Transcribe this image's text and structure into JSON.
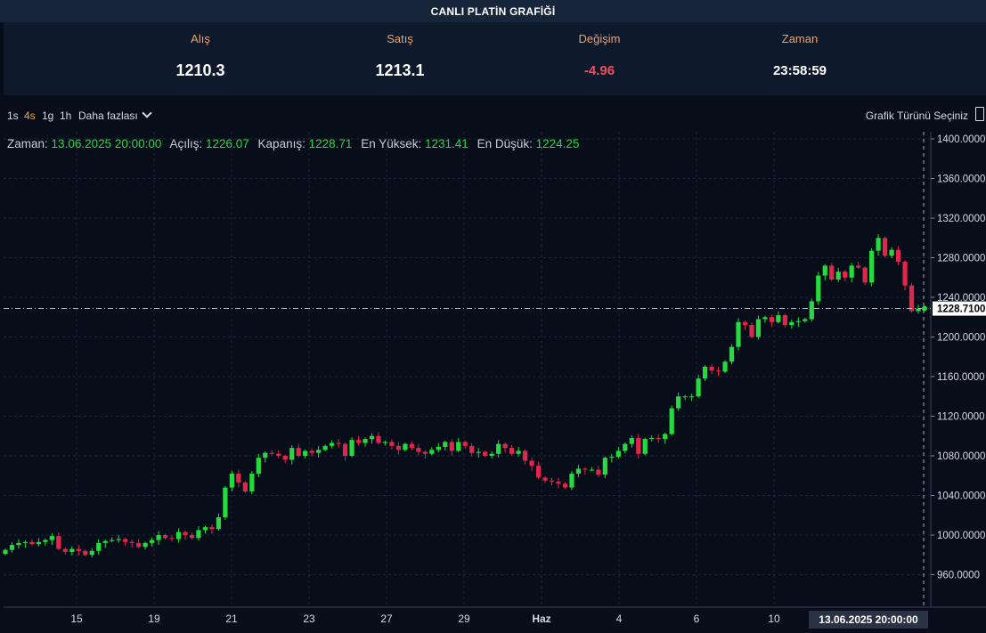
{
  "header": {
    "title": "CANLI PLATİN GRAFİĞİ"
  },
  "quotes": [
    {
      "label": "Alış",
      "value": "1210.3"
    },
    {
      "label": "Satış",
      "value": "1213.1"
    },
    {
      "label": "Değişim",
      "value": "-4.96"
    },
    {
      "label": "Zaman",
      "value": "23:58:59"
    }
  ],
  "toolbar": {
    "timeframes": [
      "1s",
      "4s",
      "1g",
      "1h"
    ],
    "active": "4s",
    "more_label": "Daha fazlası",
    "chart_type_label": "Grafik Türünü Seçiniz"
  },
  "legend": {
    "time_label": "Zaman:",
    "time_value": "13.06.2025 20:00:00",
    "open_label": "Açılış:",
    "open_value": "1226.07",
    "close_label": "Kapanış:",
    "close_value": "1228.71",
    "high_label": "En Yüksek:",
    "high_value": "1231.41",
    "low_label": "En Düşük:",
    "low_value": "1224.25"
  },
  "colors": {
    "up": "#26d93f",
    "down": "#e0264a",
    "grid": "#1c2636",
    "axis_text": "#d6dbe2"
  },
  "chart_data": {
    "type": "candlestick",
    "ylim": [
      930,
      1410
    ],
    "y_ticks": [
      "1400.0000",
      "1360.0000",
      "1320.0000",
      "1280.0000",
      "1240.0000",
      "1200.0000",
      "1160.0000",
      "1120.0000",
      "1080.0000",
      "1040.0000",
      "1000.0000",
      "960.0000"
    ],
    "x_ticks": [
      "15",
      "19",
      "21",
      "23",
      "27",
      "29",
      "Haz",
      "4",
      "6",
      "10"
    ],
    "last_price": "1228.7100",
    "crosshair_x_label": "13.06.2025   20:00:00",
    "closes": [
      985,
      990,
      992,
      993,
      991,
      993,
      995,
      999,
      986,
      983,
      986,
      984,
      980,
      984,
      992,
      994,
      995,
      996,
      993,
      992,
      988,
      992,
      995,
      1000,
      997,
      996,
      1003,
      1000,
      997,
      1005,
      1008,
      1006,
      1018,
      1048,
      1062,
      1053,
      1044,
      1062,
      1078,
      1083,
      1082,
      1080,
      1076,
      1088,
      1080,
      1085,
      1083,
      1086,
      1090,
      1093,
      1092,
      1080,
      1096,
      1093,
      1097,
      1100,
      1093,
      1094,
      1090,
      1086,
      1092,
      1088,
      1084,
      1082,
      1086,
      1089,
      1094,
      1085,
      1094,
      1090,
      1083,
      1084,
      1080,
      1082,
      1092,
      1088,
      1082,
      1085,
      1075,
      1070,
      1058,
      1055,
      1054,
      1052,
      1048,
      1062,
      1067,
      1066,
      1066,
      1061,
      1078,
      1079,
      1085,
      1092,
      1098,
      1082,
      1097,
      1098,
      1097,
      1102,
      1128,
      1140,
      1140,
      1140,
      1158,
      1170,
      1166,
      1165,
      1175,
      1190,
      1215,
      1212,
      1200,
      1218,
      1220,
      1215,
      1222,
      1212,
      1215,
      1216,
      1218,
      1236,
      1262,
      1272,
      1258,
      1266,
      1260,
      1272,
      1270,
      1255,
      1287,
      1300,
      1282,
      1288,
      1276,
      1252,
      1226,
      1228.71
    ]
  }
}
